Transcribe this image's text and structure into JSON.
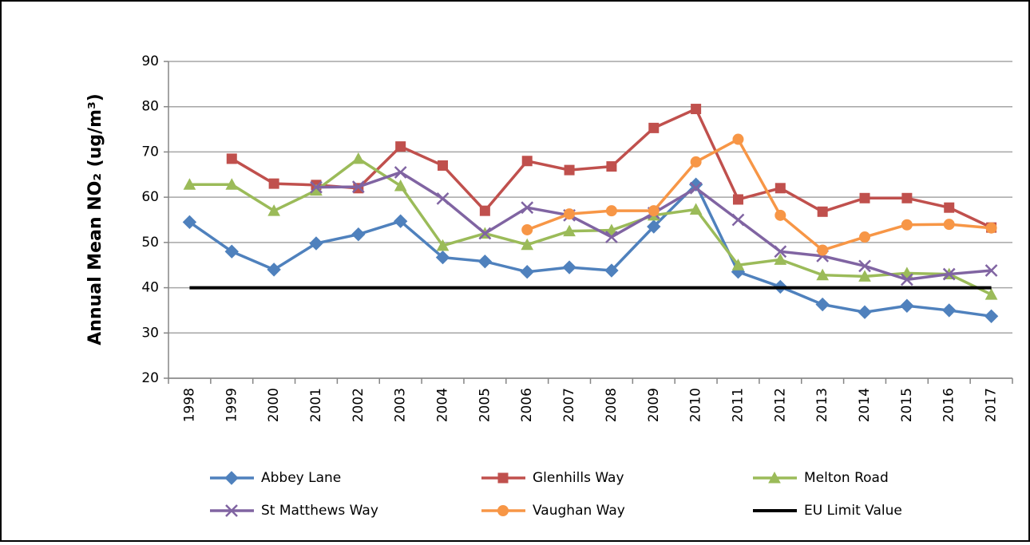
{
  "chart_data": {
    "type": "line",
    "y_axis_label": "Annual Mean NO₂ (ug/m³)",
    "categories": [
      "1998",
      "1999",
      "2000",
      "2001",
      "2002",
      "2003",
      "2004",
      "2005",
      "2006",
      "2007",
      "2008",
      "2009",
      "2010",
      "2011",
      "2012",
      "2013",
      "2014",
      "2015",
      "2016",
      "2017"
    ],
    "series": [
      {
        "name": "Abbey Lane",
        "color": "#4f81bd",
        "marker": "diamond",
        "values": [
          54.5,
          48,
          44,
          49.8,
          51.8,
          54.7,
          46.7,
          45.8,
          43.5,
          44.5,
          43.8,
          53.5,
          62.8,
          43.5,
          40.2,
          36.3,
          34.6,
          36,
          35,
          33.7
        ]
      },
      {
        "name": "Glenhills Way",
        "color": "#c0504d",
        "marker": "square",
        "values": [
          null,
          68.5,
          63,
          62.7,
          62,
          71.2,
          67,
          57,
          68,
          66,
          66.8,
          75.3,
          79.5,
          59.5,
          62,
          56.8,
          59.8,
          59.8,
          57.7,
          53.3
        ]
      },
      {
        "name": "Melton Road",
        "color": "#9bbb59",
        "marker": "triangle",
        "values": [
          62.8,
          62.8,
          57,
          61.5,
          68.5,
          62.5,
          49.3,
          52,
          49.5,
          52.5,
          52.7,
          56,
          57.3,
          45,
          46.2,
          42.8,
          42.5,
          43.2,
          43,
          38.5
        ]
      },
      {
        "name": "St Matthews Way",
        "color": "#8064a2",
        "marker": "x",
        "values": [
          null,
          null,
          null,
          62.2,
          62.3,
          65.5,
          59.7,
          52,
          57.7,
          56,
          51.2,
          56.5,
          62,
          55,
          48,
          47,
          44.8,
          41.8,
          43,
          43.8
        ]
      },
      {
        "name": "Vaughan Way",
        "color": "#f79646",
        "marker": "circle",
        "values": [
          null,
          null,
          null,
          null,
          null,
          null,
          null,
          null,
          52.8,
          56.3,
          57,
          57,
          67.8,
          72.8,
          56,
          48.3,
          51.2,
          53.9,
          54,
          53.2
        ]
      },
      {
        "name": "EU Limit Value",
        "color": "#000000",
        "marker": "none",
        "values": [
          40,
          40,
          40,
          40,
          40,
          40,
          40,
          40,
          40,
          40,
          40,
          40,
          40,
          40,
          40,
          40,
          40,
          40,
          40,
          40
        ]
      }
    ],
    "ylim": [
      20,
      90
    ],
    "yticks": [
      20,
      30,
      40,
      50,
      60,
      70,
      80,
      90
    ],
    "grid": true
  }
}
